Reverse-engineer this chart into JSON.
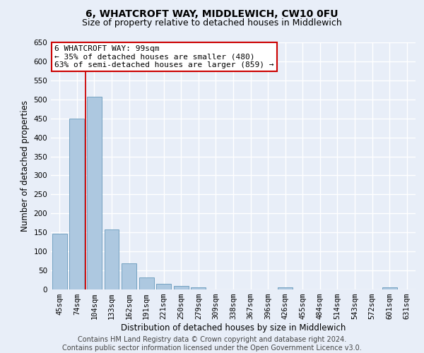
{
  "title": "6, WHATCROFT WAY, MIDDLEWICH, CW10 0FU",
  "subtitle": "Size of property relative to detached houses in Middlewich",
  "xlabel": "Distribution of detached houses by size in Middlewich",
  "ylabel": "Number of detached properties",
  "footer_line1": "Contains HM Land Registry data © Crown copyright and database right 2024.",
  "footer_line2": "Contains public sector information licensed under the Open Government Licence v3.0.",
  "categories": [
    "45sqm",
    "74sqm",
    "104sqm",
    "133sqm",
    "162sqm",
    "191sqm",
    "221sqm",
    "250sqm",
    "279sqm",
    "309sqm",
    "338sqm",
    "367sqm",
    "396sqm",
    "426sqm",
    "455sqm",
    "484sqm",
    "514sqm",
    "543sqm",
    "572sqm",
    "601sqm",
    "631sqm"
  ],
  "values": [
    147,
    449,
    507,
    158,
    68,
    31,
    14,
    9,
    5,
    0,
    0,
    0,
    0,
    6,
    0,
    0,
    0,
    0,
    0,
    6,
    0
  ],
  "bar_color": "#adc8e0",
  "bar_edge_color": "#6699bb",
  "annotation_box_text": "6 WHATCROFT WAY: 99sqm\n← 35% of detached houses are smaller (480)\n63% of semi-detached houses are larger (859) →",
  "ylim": [
    0,
    650
  ],
  "yticks": [
    0,
    50,
    100,
    150,
    200,
    250,
    300,
    350,
    400,
    450,
    500,
    550,
    600,
    650
  ],
  "bg_color": "#e8eef8",
  "plot_bg_color": "#e8eef8",
  "grid_color": "#ffffff",
  "red_line_color": "#cc0000",
  "box_edge_color": "#cc0000",
  "title_fontsize": 10,
  "subtitle_fontsize": 9,
  "label_fontsize": 8.5,
  "tick_fontsize": 7.5,
  "annot_fontsize": 8,
  "footer_fontsize": 7
}
